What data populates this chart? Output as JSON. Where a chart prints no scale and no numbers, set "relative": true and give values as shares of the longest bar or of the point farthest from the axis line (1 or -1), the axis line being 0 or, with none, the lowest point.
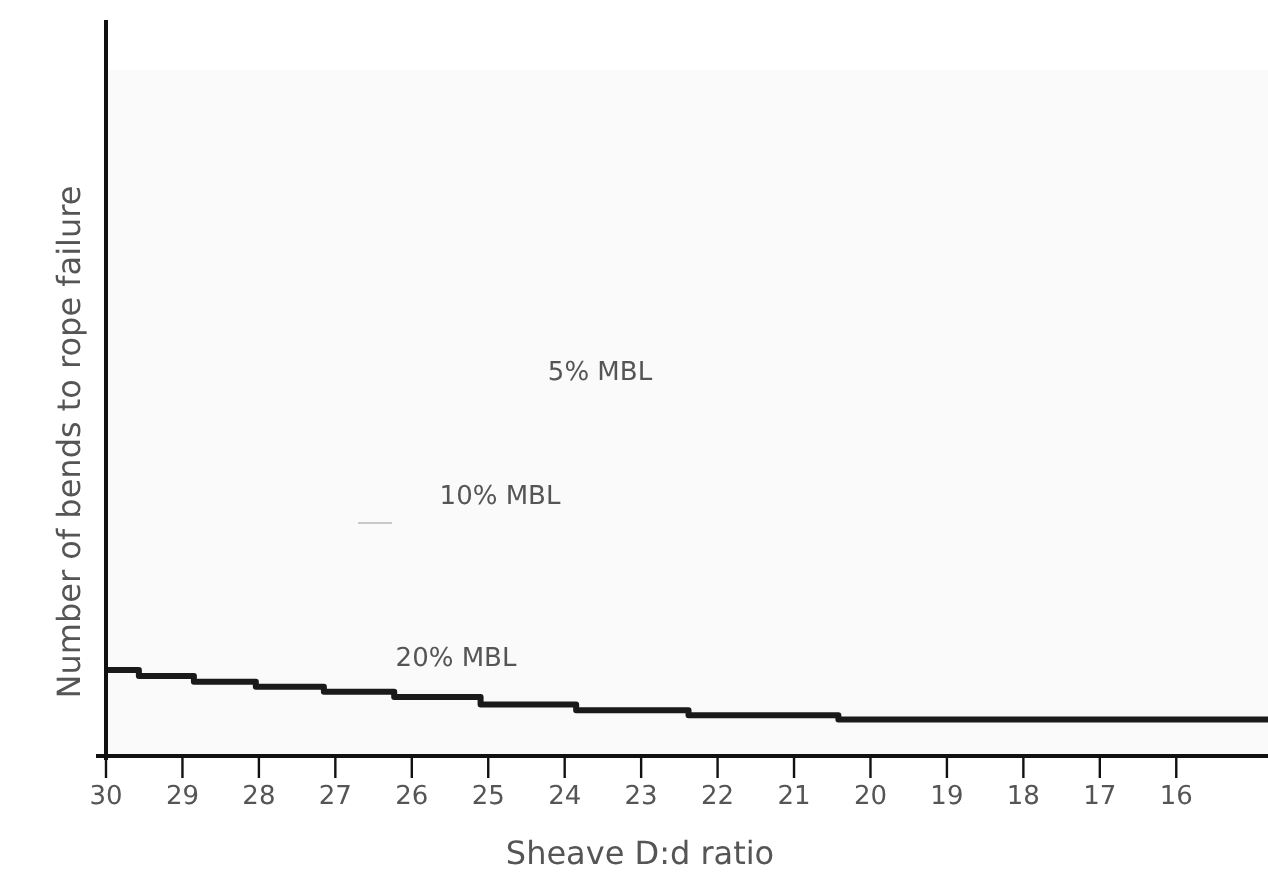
{
  "chart_data": {
    "type": "step",
    "relative": true,
    "xlabel": "Sheave D:d ratio",
    "ylabel": "Number of bends to rope failure",
    "x": [
      30,
      29.57,
      28.85,
      28.04,
      27.15,
      26.23,
      25.1,
      23.85,
      22.38,
      20.42,
      14.8
    ],
    "series": [
      {
        "color": "#1a1a1a",
        "values": [
          1,
          0.93,
          0.86,
          0.8,
          0.74,
          0.68,
          0.59,
          0.52,
          0.46,
          0.41,
          0.41
        ]
      }
    ],
    "xlim": [
      30,
      14.8
    ],
    "xticks": [
      30,
      29,
      28,
      27,
      26,
      25,
      24,
      23,
      22,
      21,
      20,
      19,
      18,
      17,
      16
    ],
    "annotations": [
      "5% MBL",
      "10% MBL",
      "20% MBL"
    ]
  }
}
